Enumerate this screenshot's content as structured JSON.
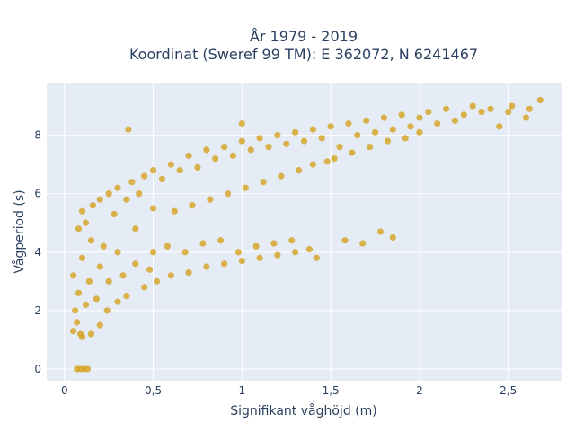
{
  "chart_data": {
    "type": "scatter",
    "title_line1": "År 1979 - 2019",
    "title_line2": "Koordinat (Sweref 99 TM): E 362072, N 6241467",
    "xlabel": "Signifikant våghöjd (m)",
    "ylabel": "Vågperiod (s)",
    "xlim": [
      -0.1,
      2.8
    ],
    "ylim": [
      -0.4,
      9.8
    ],
    "x_ticks": [
      0,
      0.5,
      1,
      1.5,
      2,
      2.5
    ],
    "x_tick_labels": [
      "0",
      "0,5",
      "1",
      "1,5",
      "2",
      "2,5"
    ],
    "y_ticks": [
      0,
      2,
      4,
      6,
      8
    ],
    "y_tick_labels": [
      "0",
      "2",
      "4",
      "6",
      "8"
    ],
    "grid": true,
    "legend": "none",
    "colors": {
      "marker": "#d4a21f",
      "plot_background": "#e5ecf6",
      "grid": "#ffffff",
      "text": "#2a3f5f"
    },
    "series": [
      {
        "points": [
          [
            0.05,
            1.3
          ],
          [
            0.05,
            3.2
          ],
          [
            0.06,
            2.0
          ],
          [
            0.07,
            1.6
          ],
          [
            0.08,
            4.8
          ],
          [
            0.08,
            2.6
          ],
          [
            0.09,
            1.2
          ],
          [
            0.1,
            5.4
          ],
          [
            0.1,
            3.8
          ],
          [
            0.1,
            1.1
          ],
          [
            0.12,
            2.2
          ],
          [
            0.12,
            5.0
          ],
          [
            0.14,
            3.0
          ],
          [
            0.15,
            1.2
          ],
          [
            0.15,
            4.4
          ],
          [
            0.16,
            5.6
          ],
          [
            0.18,
            2.4
          ],
          [
            0.2,
            1.5
          ],
          [
            0.2,
            5.8
          ],
          [
            0.2,
            3.5
          ],
          [
            0.22,
            4.2
          ],
          [
            0.24,
            2.0
          ],
          [
            0.25,
            6.0
          ],
          [
            0.25,
            3.0
          ],
          [
            0.28,
            5.3
          ],
          [
            0.3,
            2.3
          ],
          [
            0.3,
            6.2
          ],
          [
            0.3,
            4.0
          ],
          [
            0.33,
            3.2
          ],
          [
            0.35,
            5.8
          ],
          [
            0.35,
            2.5
          ],
          [
            0.36,
            8.2
          ],
          [
            0.38,
            6.4
          ],
          [
            0.4,
            3.6
          ],
          [
            0.4,
            4.8
          ],
          [
            0.42,
            6.0
          ],
          [
            0.45,
            2.8
          ],
          [
            0.45,
            6.6
          ],
          [
            0.48,
            3.4
          ],
          [
            0.5,
            5.5
          ],
          [
            0.5,
            6.8
          ],
          [
            0.5,
            4.0
          ],
          [
            0.52,
            3.0
          ],
          [
            0.55,
            6.5
          ],
          [
            0.58,
            4.2
          ],
          [
            0.6,
            7.0
          ],
          [
            0.6,
            3.2
          ],
          [
            0.62,
            5.4
          ],
          [
            0.65,
            6.8
          ],
          [
            0.68,
            4.0
          ],
          [
            0.7,
            7.3
          ],
          [
            0.7,
            3.3
          ],
          [
            0.72,
            5.6
          ],
          [
            0.75,
            6.9
          ],
          [
            0.78,
            4.3
          ],
          [
            0.8,
            7.5
          ],
          [
            0.8,
            3.5
          ],
          [
            0.82,
            5.8
          ],
          [
            0.85,
            7.2
          ],
          [
            0.88,
            4.4
          ],
          [
            0.9,
            7.6
          ],
          [
            0.9,
            3.6
          ],
          [
            0.92,
            6.0
          ],
          [
            0.95,
            7.3
          ],
          [
            0.98,
            4.0
          ],
          [
            1.0,
            7.8
          ],
          [
            1.0,
            3.7
          ],
          [
            1.0,
            8.4
          ],
          [
            1.02,
            6.2
          ],
          [
            1.05,
            7.5
          ],
          [
            1.08,
            4.2
          ],
          [
            1.1,
            7.9
          ],
          [
            1.1,
            3.8
          ],
          [
            1.12,
            6.4
          ],
          [
            1.15,
            7.6
          ],
          [
            1.18,
            4.3
          ],
          [
            1.2,
            8.0
          ],
          [
            1.2,
            3.9
          ],
          [
            1.22,
            6.6
          ],
          [
            1.25,
            7.7
          ],
          [
            1.28,
            4.4
          ],
          [
            1.3,
            8.1
          ],
          [
            1.3,
            4.0
          ],
          [
            1.32,
            6.8
          ],
          [
            1.35,
            7.8
          ],
          [
            1.38,
            4.1
          ],
          [
            1.4,
            8.2
          ],
          [
            1.4,
            7.0
          ],
          [
            1.42,
            3.8
          ],
          [
            1.45,
            7.9
          ],
          [
            1.48,
            7.1
          ],
          [
            1.5,
            8.3
          ],
          [
            1.52,
            7.2
          ],
          [
            1.55,
            7.6
          ],
          [
            1.58,
            4.4
          ],
          [
            1.6,
            8.4
          ],
          [
            1.62,
            7.4
          ],
          [
            1.65,
            8.0
          ],
          [
            1.68,
            4.3
          ],
          [
            1.7,
            8.5
          ],
          [
            1.72,
            7.6
          ],
          [
            1.75,
            8.1
          ],
          [
            1.78,
            4.7
          ],
          [
            1.8,
            8.6
          ],
          [
            1.82,
            7.8
          ],
          [
            1.85,
            4.5
          ],
          [
            1.85,
            8.2
          ],
          [
            1.9,
            8.7
          ],
          [
            1.92,
            7.9
          ],
          [
            1.95,
            8.3
          ],
          [
            2.0,
            8.6
          ],
          [
            2.0,
            8.1
          ],
          [
            2.05,
            8.8
          ],
          [
            2.1,
            8.4
          ],
          [
            2.15,
            8.9
          ],
          [
            2.2,
            8.5
          ],
          [
            2.25,
            8.7
          ],
          [
            2.3,
            9.0
          ],
          [
            2.35,
            8.8
          ],
          [
            2.4,
            8.9
          ],
          [
            2.45,
            8.3
          ],
          [
            2.5,
            8.8
          ],
          [
            2.52,
            9.0
          ],
          [
            2.6,
            8.6
          ],
          [
            2.62,
            8.9
          ],
          [
            2.68,
            9.2
          ],
          [
            0.07,
            0.0
          ],
          [
            0.09,
            0.0
          ],
          [
            0.11,
            0.0
          ],
          [
            0.13,
            0.0
          ]
        ]
      }
    ]
  }
}
